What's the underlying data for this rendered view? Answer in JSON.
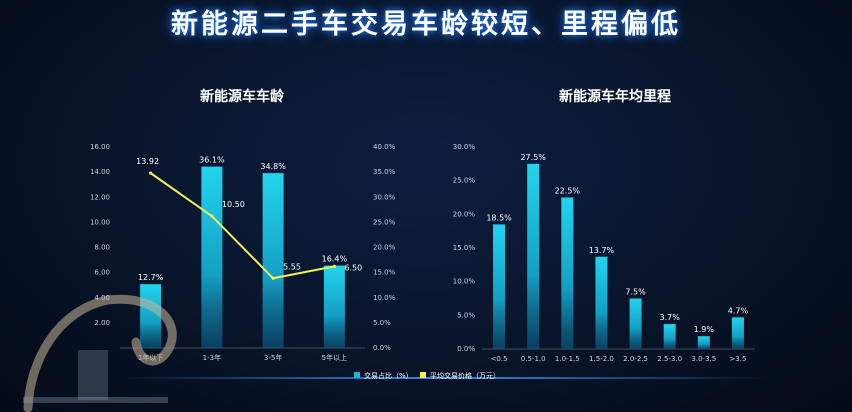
{
  "title": "新能源二手车交易车龄较短、里程偏低",
  "colors": {
    "bar": "#17b8d6",
    "line": "#f1f154",
    "background": "#081429",
    "title_glow": "#1e6bd6"
  },
  "legend": {
    "bar_label": "交易占比（%）",
    "line_label": "平均交易价格（万元）"
  },
  "chart_data": [
    {
      "type": "bar",
      "title": "新能源车车龄",
      "categories": [
        "1年以下",
        "1-3年",
        "3-5年",
        "5年以上"
      ],
      "series": [
        {
          "name": "交易占比（%）",
          "type": "bar",
          "axis": "right",
          "values": [
            12.7,
            36.1,
            34.8,
            16.4
          ],
          "labels": [
            "12.7%",
            "36.1%",
            "34.8%",
            "16.4%"
          ]
        },
        {
          "name": "平均交易价格（万元）",
          "type": "line",
          "axis": "left",
          "values": [
            13.92,
            10.5,
            5.55,
            6.5
          ],
          "labels": [
            "13.92",
            "10.50",
            "5.55",
            "6.50"
          ]
        }
      ],
      "y_left": {
        "range": [
          0,
          16
        ],
        "ticks": [
          "2.00",
          "4.00",
          "6.00",
          "8.00",
          "10.00",
          "12.00",
          "14.00",
          "16.00"
        ]
      },
      "y_right": {
        "range": [
          0,
          40
        ],
        "ticks": [
          "0.0%",
          "5.0%",
          "10.0%",
          "15.0%",
          "20.0%",
          "25.0%",
          "30.0%",
          "35.0%",
          "40.0%"
        ]
      }
    },
    {
      "type": "bar",
      "title": "新能源车年均里程",
      "categories": [
        "<0.5",
        "0.5-1.0",
        "1.0-1.5",
        "1.5-2.0",
        "2.0-2.5",
        "2.5-3.0",
        "3.0-3.5",
        ">3.5"
      ],
      "values": [
        18.5,
        27.5,
        22.5,
        13.7,
        7.5,
        3.7,
        1.9,
        4.7
      ],
      "labels": [
        "18.5%",
        "27.5%",
        "22.5%",
        "13.7%",
        "7.5%",
        "3.7%",
        "1.9%",
        "4.7%"
      ],
      "y": {
        "range": [
          0,
          30
        ],
        "ticks": [
          "0.0%",
          "5.0%",
          "10.0%",
          "15.0%",
          "20.0%",
          "25.0%",
          "30.0%"
        ]
      }
    }
  ]
}
